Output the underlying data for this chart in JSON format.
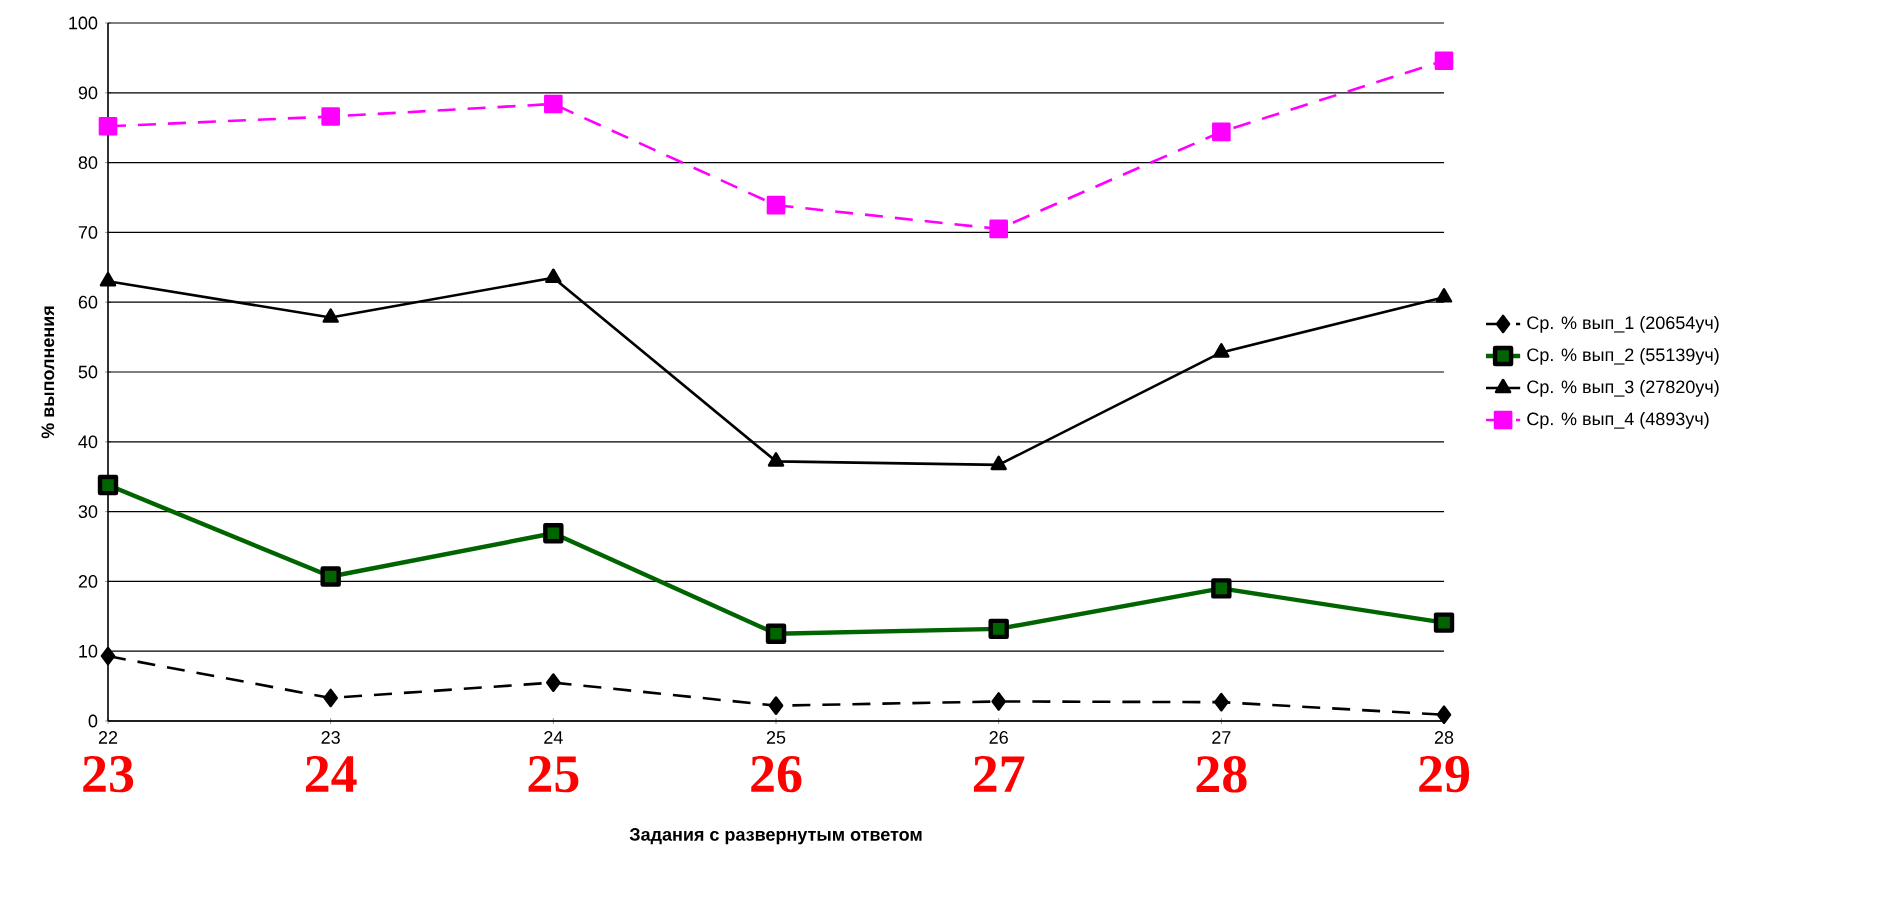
{
  "chart_data": {
    "type": "line",
    "xlabel": "Задания с развернутым ответом",
    "ylabel": "% выполнения",
    "categories": [
      "22",
      "23",
      "24",
      "25",
      "26",
      "27",
      "28"
    ],
    "series": [
      {
        "name": "Ср. % вып_1 (20654уч)",
        "color": "#000000",
        "marker": "diamond",
        "line_style": "dashed",
        "values": [
          9.3,
          3.3,
          5.5,
          2.2,
          2.8,
          2.7,
          0.9
        ]
      },
      {
        "name": "Ср. % вып_2 (55139уч)",
        "color": "#006400",
        "marker": "square",
        "line_style": "solid",
        "values": [
          33.8,
          20.7,
          26.9,
          12.5,
          13.2,
          19.0,
          14.1
        ]
      },
      {
        "name": "Ср. % вып_3 (27820уч)",
        "color": "#000000",
        "marker": "triangle",
        "line_style": "solid",
        "values": [
          63.0,
          57.8,
          63.5,
          37.2,
          36.7,
          52.8,
          60.7
        ]
      },
      {
        "name": "Ср. % вып_4 (4893уч)",
        "color": "#ff00ff",
        "marker": "square",
        "line_style": "dashed",
        "values": [
          85.2,
          86.6,
          88.4,
          73.9,
          70.5,
          84.4,
          94.6
        ]
      }
    ],
    "ylim": [
      0,
      100
    ],
    "yticks": [
      0,
      10,
      20,
      30,
      40,
      50,
      60,
      70,
      80,
      90,
      100
    ],
    "grid": "y",
    "legend": "right",
    "annotations": [
      "23",
      "24",
      "25",
      "26",
      "27",
      "28",
      "29"
    ]
  }
}
